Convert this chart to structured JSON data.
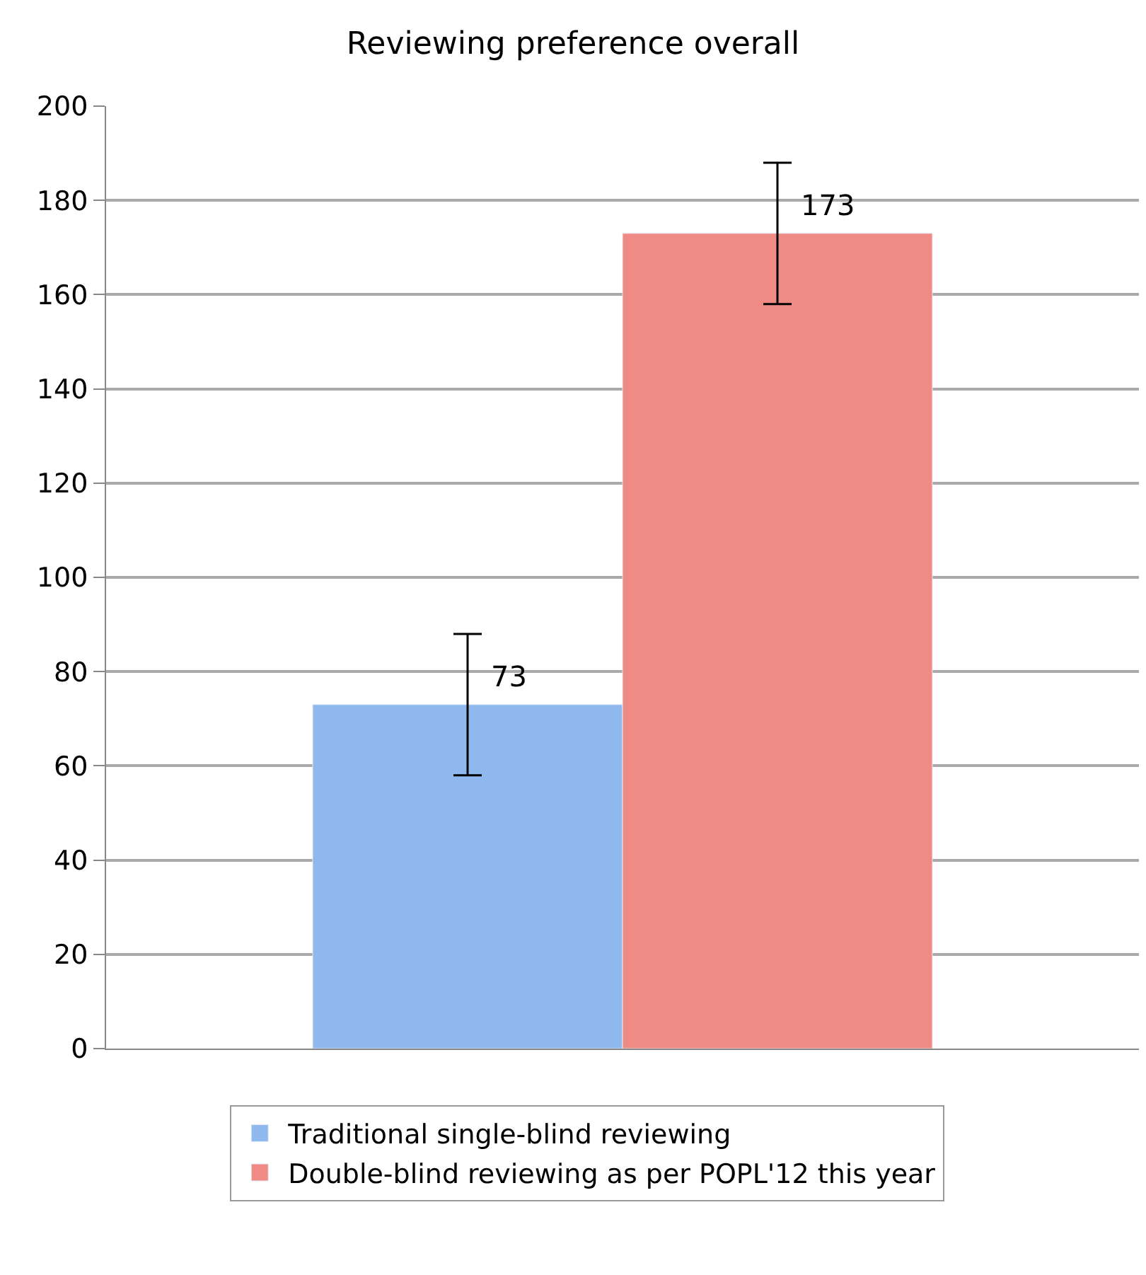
{
  "chart_data": {
    "type": "bar",
    "title": "Reviewing preference overall",
    "categories": [
      null
    ],
    "series": [
      {
        "name": "Traditional single-blind reviewing",
        "color": "#8fb8ee",
        "values": [
          73
        ],
        "errors": [
          15
        ]
      },
      {
        "name": "Double-blind reviewing as per POPL'12 this year",
        "color": "#ef8a84",
        "values": [
          173
        ],
        "errors": [
          15
        ]
      }
    ],
    "ylim": [
      0,
      200
    ],
    "yticks": [
      0,
      20,
      40,
      60,
      80,
      100,
      120,
      140,
      160,
      180,
      200
    ],
    "grid": "y",
    "legend": "bottom",
    "data_labels": true
  }
}
